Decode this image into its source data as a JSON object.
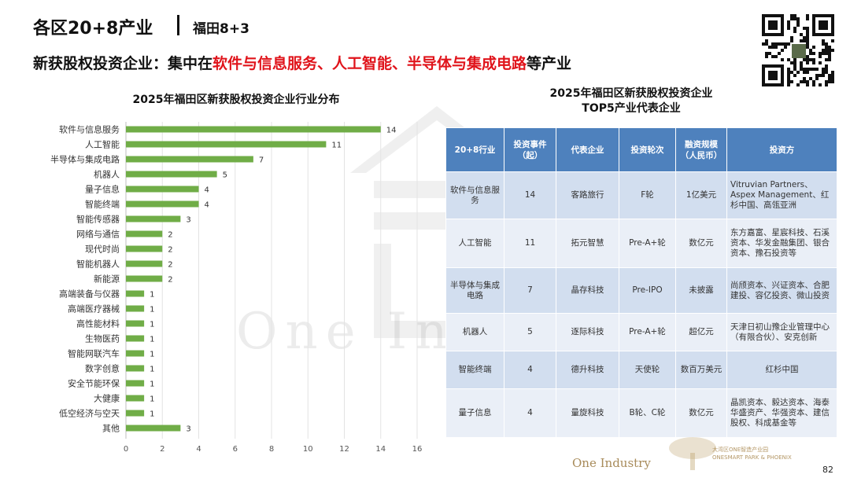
{
  "header": {
    "title": "各区20+8产业",
    "subtitle": "福田8+3"
  },
  "headline": {
    "prefix": "新获股权投资企业：集中在",
    "highlight": "软件与信息服务、人工智能、半导体与集成电路",
    "suffix": "等产业"
  },
  "watermark": {
    "text": "One Industry"
  },
  "chart_data": {
    "type": "bar",
    "orientation": "horizontal",
    "title": "2025年福田区新获股权投资企业行业分布",
    "categories": [
      "软件与信息服务",
      "人工智能",
      "半导体与集成电路",
      "机器人",
      "量子信息",
      "智能终端",
      "智能传感器",
      "网络与通信",
      "现代时尚",
      "智能机器人",
      "新能源",
      "高端装备与仪器",
      "高端医疗器械",
      "高性能材料",
      "生物医药",
      "智能网联汽车",
      "数字创意",
      "安全节能环保",
      "大健康",
      "低空经济与空天",
      "其他"
    ],
    "values": [
      14,
      11,
      7,
      5,
      4,
      4,
      3,
      2,
      2,
      2,
      2,
      1,
      1,
      1,
      1,
      1,
      1,
      1,
      1,
      1,
      3
    ],
    "x_ticks": [
      0,
      2,
      4,
      6,
      8,
      10,
      12,
      14,
      16
    ],
    "xlim": [
      0,
      16
    ],
    "bar_color": "#70ad47",
    "grid": true,
    "xlabel": "",
    "ylabel": ""
  },
  "table": {
    "title_lines": [
      "2025年福田区新获股权投资企业",
      "TOP5产业代表企业"
    ],
    "header_color": "#4e81bd",
    "columns": [
      "20+8行业",
      "投资事件（起）",
      "代表企业",
      "投资轮次",
      "融资规模（人民币）",
      "投资方"
    ],
    "rows": [
      {
        "industry": "软件与信息服务",
        "events": "14",
        "company": "客路旅行",
        "round": "F轮",
        "scale": "1亿美元",
        "investors": "Vitruvian Partners、Aspex Management、红杉中国、高瓴亚洲"
      },
      {
        "industry": "人工智能",
        "events": "11",
        "company": "拓元智慧",
        "round": "Pre-A+轮",
        "scale": "数亿元",
        "investors": "东方嘉富、星宸科技、石溪资本、华发金融集团、银合资本、豫石投资等"
      },
      {
        "industry": "半导体与集成电路",
        "events": "7",
        "company": "晶存科技",
        "round": "Pre-IPO",
        "scale": "未披露",
        "investors": "尚颀资本、兴证资本、合肥建投、容亿投资、微山投资"
      },
      {
        "industry": "机器人",
        "events": "5",
        "company": "逐际科技",
        "round": "Pre-A+轮",
        "scale": "超亿元",
        "investors": "天津日初山豫企业管理中心（有限合伙）、安克创新"
      },
      {
        "industry": "智能终端",
        "events": "4",
        "company": "德升科技",
        "round": "天使轮",
        "scale": "数百万美元",
        "investors": "红杉中国"
      },
      {
        "industry": "量子信息",
        "events": "4",
        "company": "量旋科技",
        "round": "B轮、C轮",
        "scale": "数亿元",
        "investors": "晶凯资本、毅达资本、海泰华盛资产、华强资本、建信股权、科成基金等"
      }
    ]
  },
  "footer": {
    "logo_text": "One Industry",
    "park_text_cn": "大湾区ONE智造产业园",
    "park_text_en": "ONESMART PARK & PHOENIX",
    "page_number": "82"
  },
  "icons": {
    "qr": "qr-code-icon",
    "watermark": "house-watermark-icon",
    "park": "tree-park-logo-icon"
  }
}
